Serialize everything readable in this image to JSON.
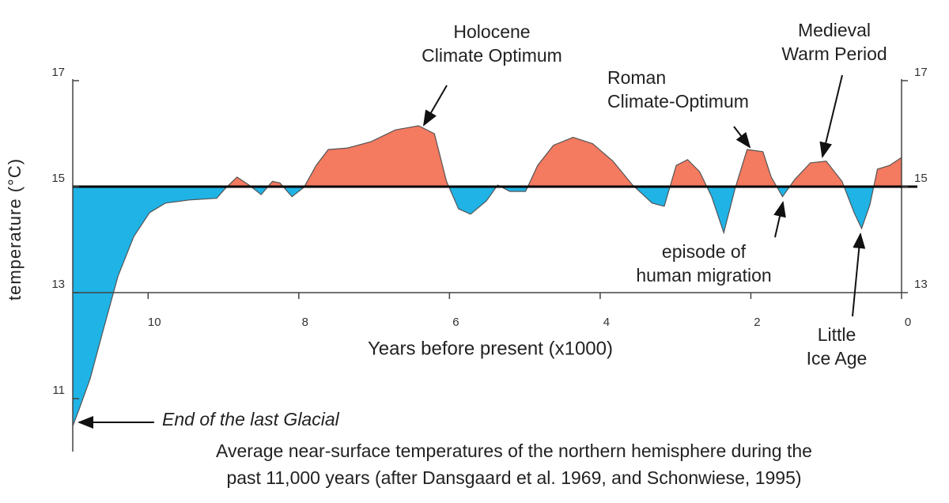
{
  "chart_data": {
    "type": "area",
    "x_label": "Years before present (x1000)",
    "y_label": "temperature (°C)",
    "caption": [
      "Average near-surface temperatures of the northern hemisphere during the",
      "past 11,000 years (after Dansgaard et al. 1969, and Schonwiese, 1995)"
    ],
    "baseline": 15,
    "colors": {
      "above": "#f47a60",
      "below": "#1fb3e6"
    },
    "xlim": [
      11,
      0
    ],
    "xticks": [
      10,
      8,
      6,
      4,
      2,
      0
    ],
    "ylim": [
      10,
      17
    ],
    "yticks": [
      17,
      15,
      13,
      11
    ],
    "y2lim": [
      10,
      17
    ],
    "y2ticks": [
      17,
      15,
      13
    ],
    "x": [
      11.0,
      10.92,
      10.77,
      10.6,
      10.4,
      10.19,
      9.98,
      9.77,
      9.45,
      9.09,
      8.98,
      8.82,
      8.66,
      8.5,
      8.35,
      8.25,
      8.09,
      7.93,
      7.77,
      7.61,
      7.35,
      7.04,
      6.72,
      6.41,
      6.2,
      6.04,
      5.88,
      5.72,
      5.51,
      5.36,
      5.2,
      4.99,
      4.83,
      4.62,
      4.36,
      4.1,
      3.83,
      3.57,
      3.31,
      3.15,
      2.99,
      2.84,
      2.68,
      2.52,
      2.36,
      2.21,
      2.05,
      1.84,
      1.73,
      1.58,
      1.42,
      1.21,
      1.0,
      0.79,
      0.63,
      0.53,
      0.42,
      0.32,
      0.16,
      0.0
    ],
    "values": [
      10.48,
      10.78,
      11.37,
      12.27,
      13.31,
      14.06,
      14.51,
      14.69,
      14.75,
      14.78,
      14.96,
      15.18,
      15.03,
      14.85,
      15.1,
      15.07,
      14.81,
      14.99,
      15.4,
      15.7,
      15.73,
      15.85,
      16.07,
      16.15,
      16.0,
      15.1,
      14.58,
      14.48,
      14.73,
      15.03,
      14.91,
      14.91,
      15.4,
      15.78,
      15.93,
      15.81,
      15.48,
      15.03,
      14.69,
      14.63,
      15.4,
      15.51,
      15.28,
      14.81,
      14.13,
      14.96,
      15.7,
      15.66,
      15.18,
      14.81,
      15.13,
      15.45,
      15.48,
      15.1,
      14.51,
      14.21,
      14.66,
      15.33,
      15.4,
      15.55
    ],
    "annotations": [
      {
        "lines": [
          "Holocene",
          "Climate Optimum"
        ]
      },
      {
        "lines": [
          "Roman",
          "Climate-Optimum"
        ]
      },
      {
        "lines": [
          "Medieval",
          "Warm Period"
        ]
      },
      {
        "lines": [
          "episode of",
          "human migration"
        ]
      },
      {
        "lines": [
          "Little",
          "Ice Age"
        ]
      },
      {
        "lines": [
          "End of the last Glacial"
        ]
      }
    ]
  }
}
